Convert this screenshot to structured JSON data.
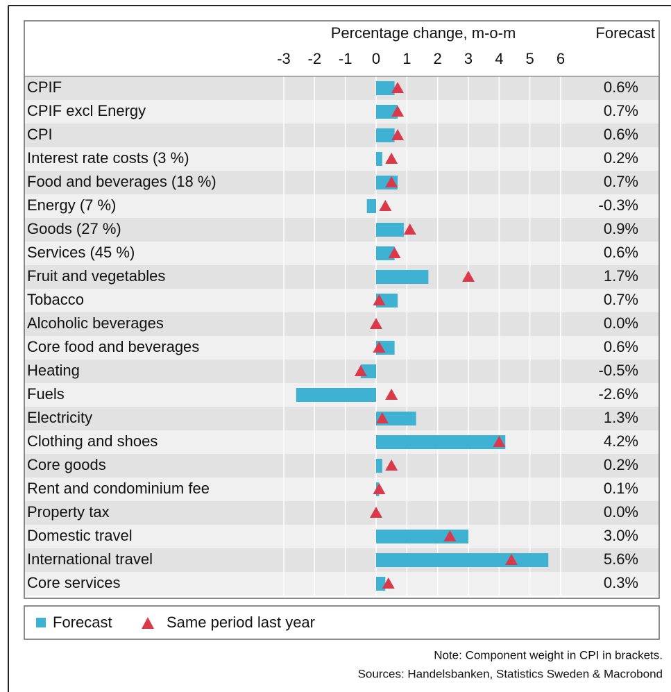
{
  "chart_data": {
    "type": "bar",
    "orientation": "horizontal",
    "xlabel": "Percentage change, m-o-m",
    "value_label_header": "Forecast",
    "categories": [
      "CPIF",
      "CPIF excl Energy",
      "CPI",
      "Interest rate costs (3 %)",
      "Food and beverages (18 %)",
      "Energy (7 %)",
      "Goods (27 %)",
      "Services (45 %)",
      "Fruit and vegetables",
      "Tobacco",
      "Alcoholic beverages",
      "Core food and beverages",
      "Heating",
      "Fuels",
      "Electricity",
      "Clothing and shoes",
      "Core goods",
      "Rent and condominium fee",
      "Property tax",
      "Domestic travel",
      "International travel",
      "Core services"
    ],
    "series": [
      {
        "name": "Forecast",
        "color": "#3fb1d2",
        "marker": "bar",
        "values": [
          0.6,
          0.7,
          0.6,
          0.2,
          0.7,
          -0.3,
          0.9,
          0.6,
          1.7,
          0.7,
          0.0,
          0.6,
          -0.5,
          -2.6,
          1.3,
          4.2,
          0.2,
          0.1,
          0.0,
          3.0,
          5.6,
          0.3
        ],
        "value_labels": [
          "0.6%",
          "0.7%",
          "0.6%",
          "0.2%",
          "0.7%",
          "-0.3%",
          "0.9%",
          "0.6%",
          "1.7%",
          "0.7%",
          "0.0%",
          "0.6%",
          "-0.5%",
          "-2.6%",
          "1.3%",
          "4.2%",
          "0.2%",
          "0.1%",
          "0.0%",
          "3.0%",
          "5.6%",
          "0.3%"
        ]
      },
      {
        "name": "Same period last year",
        "color": "#d9394b",
        "marker": "triangle",
        "values": [
          0.7,
          0.7,
          0.7,
          0.5,
          0.5,
          0.3,
          1.1,
          0.6,
          3.0,
          0.1,
          0.0,
          0.1,
          -0.5,
          0.5,
          0.2,
          4.0,
          0.5,
          0.1,
          0.0,
          2.4,
          4.4,
          0.4
        ]
      }
    ],
    "xlim": [
      -3,
      6
    ],
    "xticks": [
      -3,
      -2,
      -1,
      0,
      1,
      2,
      3,
      4,
      5,
      6
    ],
    "grid": true,
    "notes": [
      "Note: Component weight in CPI in brackets.",
      "Sources: Handelsbanken, Statistics Sweden & Macrobond"
    ]
  }
}
